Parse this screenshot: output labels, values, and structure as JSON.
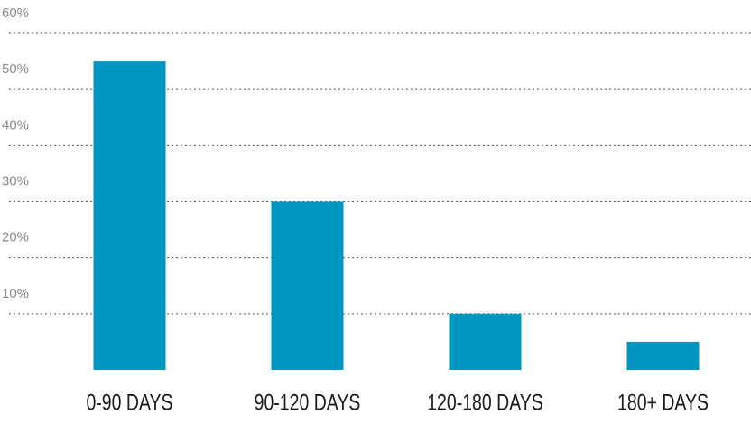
{
  "chart_data": {
    "type": "bar",
    "categories": [
      "0-90 DAYS",
      "90-120 DAYS",
      "120-180 DAYS",
      "180+ DAYS"
    ],
    "values": [
      55,
      30,
      10,
      5
    ],
    "color": "#0096c2",
    "ylim": [
      0,
      60
    ],
    "yticks": [
      {
        "value": 10,
        "label": "10%"
      },
      {
        "value": 20,
        "label": "20%"
      },
      {
        "value": 30,
        "label": "30%"
      },
      {
        "value": 40,
        "label": "40%"
      },
      {
        "value": 50,
        "label": "50%"
      },
      {
        "value": 60,
        "label": "60%"
      }
    ],
    "grid": true
  }
}
